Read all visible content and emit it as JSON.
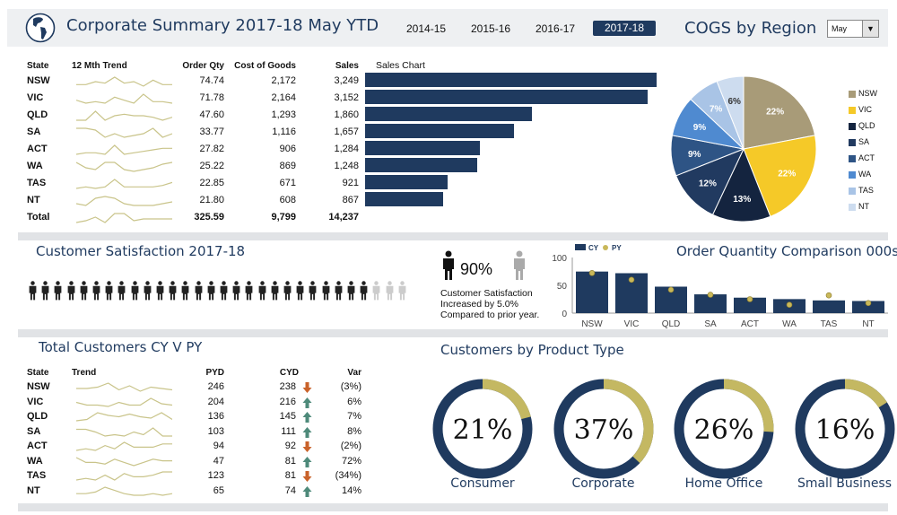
{
  "header": {
    "title": "Corporate Summary 2017-18 May YTD",
    "years": [
      "2014-15",
      "2015-16",
      "2016-17",
      "2017-18"
    ],
    "selected_year": "2017-18",
    "cogs_title": "COGS by Region",
    "month_select": "May",
    "dropdown_icon": "chevron-down-icon"
  },
  "colors": {
    "navy": "#1f3a5f",
    "spark": "#c9c48a",
    "up": "#4e8a7a",
    "down": "#c9622a"
  },
  "summary": {
    "headers": {
      "state": "State",
      "trend": "12 Mth Trend",
      "order_qty": "Order Qty",
      "cogs": "Cost of Goods",
      "sales": "Sales",
      "chart": "Sales Chart"
    },
    "rows": [
      {
        "state": "NSW",
        "order_qty": "74.74",
        "cogs": "2,172",
        "sales": "3,249",
        "sales_value": 3249,
        "trend": [
          3,
          3,
          5,
          4,
          8,
          4,
          5,
          2,
          6,
          3,
          3
        ]
      },
      {
        "state": "VIC",
        "order_qty": "71.78",
        "cogs": "2,164",
        "sales": "3,152",
        "sales_value": 3152,
        "trend": [
          4,
          2,
          3,
          2,
          6,
          4,
          2,
          8,
          3,
          3,
          2
        ]
      },
      {
        "state": "QLD",
        "order_qty": "47.60",
        "cogs": "1,293",
        "sales": "1,860",
        "sales_value": 1860,
        "trend": [
          2,
          2,
          8,
          2,
          5,
          6,
          5,
          5,
          4,
          2,
          4
        ]
      },
      {
        "state": "SA",
        "order_qty": "33.77",
        "cogs": "1,116",
        "sales": "1,657",
        "sales_value": 1657,
        "trend": [
          7,
          7,
          6,
          2,
          4,
          2,
          3,
          4,
          7,
          2,
          4
        ]
      },
      {
        "state": "ACT",
        "order_qty": "27.82",
        "cogs": "906",
        "sales": "1,284",
        "sales_value": 1284,
        "trend": [
          2,
          3,
          3,
          2,
          8,
          2,
          3,
          4,
          5,
          6,
          6
        ]
      },
      {
        "state": "WA",
        "order_qty": "25.22",
        "cogs": "869",
        "sales": "1,248",
        "sales_value": 1248,
        "trend": [
          7,
          4,
          3,
          7,
          7,
          3,
          2,
          3,
          4,
          6,
          7
        ]
      },
      {
        "state": "TAS",
        "order_qty": "22.85",
        "cogs": "671",
        "sales": "921",
        "sales_value": 921,
        "trend": [
          2,
          3,
          2,
          3,
          8,
          3,
          3,
          3,
          3,
          4,
          6
        ]
      },
      {
        "state": "NT",
        "order_qty": "21.80",
        "cogs": "608",
        "sales": "867",
        "sales_value": 867,
        "trend": [
          3,
          2,
          6,
          7,
          6,
          3,
          2,
          2,
          2,
          3,
          4
        ]
      }
    ],
    "total": {
      "state": "Total",
      "order_qty": "325.59",
      "cogs": "9,799",
      "sales": "14,237",
      "trend": [
        2,
        3,
        5,
        2,
        7,
        7,
        3,
        4,
        4,
        4,
        4
      ]
    }
  },
  "pie": {
    "slices": [
      {
        "label": "NSW",
        "pct": "22%",
        "value": 22,
        "color": "#a89b78"
      },
      {
        "label": "VIC",
        "pct": "22%",
        "value": 22,
        "color": "#f5c928"
      },
      {
        "label": "QLD",
        "pct": "13%",
        "value": 13,
        "color": "#14243f"
      },
      {
        "label": "SA",
        "pct": "12%",
        "value": 12,
        "color": "#213a60"
      },
      {
        "label": "ACT",
        "pct": "9%",
        "value": 9,
        "color": "#2e5485"
      },
      {
        "label": "WA",
        "pct": "9%",
        "value": 9,
        "color": "#4f8ad0"
      },
      {
        "label": "TAS",
        "pct": "7%",
        "value": 7,
        "color": "#a9c4e6"
      },
      {
        "label": "NT",
        "pct": "6%",
        "value": 6,
        "color": "#cddcef"
      }
    ]
  },
  "satisfaction": {
    "title": "Customer Satisfaction 2017-18",
    "pct": "90%",
    "value": 90,
    "text1": "Customer Satisfaction",
    "text2": "Increased by 5.0%",
    "text3": "Compared to prior year."
  },
  "chart_data": {
    "type": "bar",
    "title": "Order Quantity Comparison 000s",
    "categories": [
      "NSW",
      "VIC",
      "QLD",
      "SA",
      "ACT",
      "WA",
      "TAS",
      "NT"
    ],
    "series": [
      {
        "name": "CY",
        "values": [
          74.74,
          71.78,
          47.6,
          33.77,
          27.82,
          25.22,
          22.85,
          21.8
        ]
      },
      {
        "name": "PY",
        "values": [
          72,
          60,
          42,
          33,
          25,
          15,
          32,
          18
        ]
      }
    ],
    "ylim": [
      0,
      100
    ],
    "yticks": [
      "0",
      "50",
      "100"
    ]
  },
  "customers": {
    "title": "Total Customers CY V PY",
    "headers": {
      "state": "State",
      "trend": "Trend",
      "pyd": "PYD",
      "cyd": "CYD",
      "var": "Var"
    },
    "rows": [
      {
        "state": "NSW",
        "pyd": "246",
        "cyd": "238",
        "dir": "down",
        "var": "(3%)",
        "trend": [
          4,
          4,
          5,
          8,
          3,
          6,
          2,
          5,
          4,
          3
        ]
      },
      {
        "state": "VIC",
        "pyd": "204",
        "cyd": "216",
        "dir": "up",
        "var": "6%",
        "trend": [
          5,
          3,
          3,
          2,
          5,
          3,
          3,
          8,
          4,
          3
        ]
      },
      {
        "state": "QLD",
        "pyd": "136",
        "cyd": "145",
        "dir": "up",
        "var": "7%",
        "trend": [
          2,
          3,
          8,
          6,
          5,
          7,
          5,
          4,
          8,
          3
        ]
      },
      {
        "state": "SA",
        "pyd": "103",
        "cyd": "111",
        "dir": "up",
        "var": "8%",
        "trend": [
          7,
          7,
          5,
          2,
          3,
          2,
          5,
          3,
          8,
          2,
          2
        ]
      },
      {
        "state": "ACT",
        "pyd": "94",
        "cyd": "92",
        "dir": "down",
        "var": "(2%)",
        "trend": [
          2,
          3,
          2,
          5,
          3,
          7,
          4,
          4,
          4,
          6,
          6
        ]
      },
      {
        "state": "WA",
        "pyd": "47",
        "cyd": "81",
        "dir": "up",
        "var": "72%",
        "trend": [
          7,
          4,
          4,
          3,
          6,
          4,
          2,
          4,
          6,
          5,
          5
        ]
      },
      {
        "state": "TAS",
        "pyd": "123",
        "cyd": "81",
        "dir": "down",
        "var": "(34%)",
        "trend": [
          2,
          3,
          2,
          5,
          2,
          6,
          4,
          4,
          5,
          7,
          7
        ]
      },
      {
        "state": "NT",
        "pyd": "65",
        "cyd": "74",
        "dir": "up",
        "var": "14%",
        "trend": [
          3,
          3,
          4,
          7,
          5,
          3,
          2,
          2,
          3,
          2,
          3
        ]
      }
    ]
  },
  "products": {
    "title": "Customers by Product Type",
    "items": [
      {
        "label": "Consumer",
        "pct": "21%",
        "value": 21
      },
      {
        "label": "Corporate",
        "pct": "37%",
        "value": 37
      },
      {
        "label": "Home Office",
        "pct": "26%",
        "value": 26
      },
      {
        "label": "Small Business",
        "pct": "16%",
        "value": 16
      }
    ]
  }
}
